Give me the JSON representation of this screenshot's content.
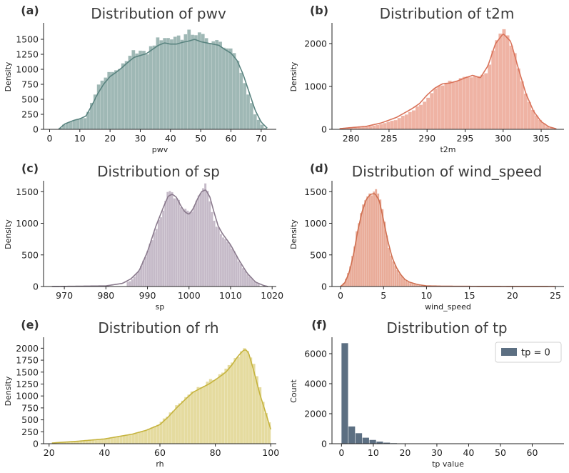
{
  "figure": {
    "background": "#ffffff"
  },
  "chart_data": [
    {
      "id": "a",
      "panel_label": "(a)",
      "type": "bar",
      "subtype": "histogram+kde",
      "title": "Distribution of pwv",
      "xlabel": "pwv",
      "ylabel": "Density",
      "xlim": [
        -2,
        75
      ],
      "ylim": [
        0,
        1750
      ],
      "xticks": [
        0,
        10,
        20,
        30,
        40,
        50,
        60,
        70
      ],
      "yticks": [
        0,
        250,
        500,
        750,
        1000,
        1250,
        1500
      ],
      "color": "#5a8480",
      "fill": "#9fb8b5",
      "bins_range": [
        3,
        72
      ],
      "bin_count": 60,
      "hist_points": [
        [
          3,
          0
        ],
        [
          5,
          90
        ],
        [
          8,
          150
        ],
        [
          10,
          175
        ],
        [
          12,
          190
        ],
        [
          14,
          450
        ],
        [
          16,
          730
        ],
        [
          18,
          840
        ],
        [
          20,
          950
        ],
        [
          22,
          990
        ],
        [
          24,
          1050
        ],
        [
          26,
          1150
        ],
        [
          28,
          1310
        ],
        [
          30,
          1300
        ],
        [
          32,
          1250
        ],
        [
          34,
          1400
        ],
        [
          36,
          1500
        ],
        [
          38,
          1540
        ],
        [
          40,
          1500
        ],
        [
          42,
          1570
        ],
        [
          44,
          1530
        ],
        [
          46,
          1610
        ],
        [
          48,
          1600
        ],
        [
          50,
          1580
        ],
        [
          52,
          1500
        ],
        [
          54,
          1470
        ],
        [
          56,
          1450
        ],
        [
          58,
          1390
        ],
        [
          60,
          1300
        ],
        [
          62,
          1180
        ],
        [
          64,
          850
        ],
        [
          66,
          550
        ],
        [
          68,
          250
        ],
        [
          70,
          90
        ],
        [
          72,
          0
        ]
      ],
      "kde_points": [
        [
          3,
          0
        ],
        [
          5,
          90
        ],
        [
          8,
          150
        ],
        [
          10,
          175
        ],
        [
          12,
          220
        ],
        [
          14,
          400
        ],
        [
          16,
          600
        ],
        [
          18,
          760
        ],
        [
          20,
          880
        ],
        [
          22,
          950
        ],
        [
          24,
          1030
        ],
        [
          26,
          1120
        ],
        [
          28,
          1200
        ],
        [
          30,
          1230
        ],
        [
          32,
          1260
        ],
        [
          34,
          1330
        ],
        [
          36,
          1400
        ],
        [
          38,
          1440
        ],
        [
          40,
          1420
        ],
        [
          42,
          1420
        ],
        [
          44,
          1450
        ],
        [
          46,
          1470
        ],
        [
          48,
          1500
        ],
        [
          50,
          1460
        ],
        [
          52,
          1440
        ],
        [
          54,
          1420
        ],
        [
          56,
          1400
        ],
        [
          58,
          1330
        ],
        [
          60,
          1270
        ],
        [
          62,
          1150
        ],
        [
          64,
          920
        ],
        [
          66,
          620
        ],
        [
          68,
          320
        ],
        [
          70,
          120
        ],
        [
          72,
          20
        ]
      ]
    },
    {
      "id": "b",
      "panel_label": "(b)",
      "type": "bar",
      "subtype": "histogram+kde",
      "title": "Distribution of t2m",
      "xlabel": "t2m",
      "ylabel": "Density",
      "xlim": [
        277.5,
        308
      ],
      "ylim": [
        0,
        2450
      ],
      "xticks": [
        280,
        285,
        290,
        295,
        300,
        305
      ],
      "yticks": [
        0,
        1000,
        2000
      ],
      "color": "#d9735a",
      "fill": "#efb3a4",
      "bins_range": [
        278.5,
        307
      ],
      "bin_count": 60,
      "hist_points": [
        [
          279,
          20
        ],
        [
          282,
          60
        ],
        [
          284,
          120
        ],
        [
          286,
          230
        ],
        [
          288,
          420
        ],
        [
          290,
          700
        ],
        [
          291,
          950
        ],
        [
          292,
          1050
        ],
        [
          293,
          1100
        ],
        [
          294,
          1150
        ],
        [
          295,
          1200
        ],
        [
          296,
          1260
        ],
        [
          297,
          1200
        ],
        [
          298,
          1400
        ],
        [
          299,
          1950
        ],
        [
          300,
          2400
        ],
        [
          301,
          2050
        ],
        [
          302,
          1450
        ],
        [
          303,
          800
        ],
        [
          304,
          420
        ],
        [
          305,
          180
        ],
        [
          306,
          50
        ],
        [
          307,
          0
        ]
      ],
      "kde_points": [
        [
          278.5,
          15
        ],
        [
          280,
          40
        ],
        [
          282,
          70
        ],
        [
          284,
          150
        ],
        [
          286,
          280
        ],
        [
          288,
          480
        ],
        [
          289,
          600
        ],
        [
          290,
          800
        ],
        [
          291,
          960
        ],
        [
          292,
          1060
        ],
        [
          293,
          1080
        ],
        [
          294,
          1130
        ],
        [
          295,
          1200
        ],
        [
          296,
          1260
        ],
        [
          297,
          1200
        ],
        [
          298,
          1480
        ],
        [
          299,
          2000
        ],
        [
          300,
          2230
        ],
        [
          301,
          2050
        ],
        [
          302,
          1420
        ],
        [
          303,
          830
        ],
        [
          304,
          420
        ],
        [
          305,
          180
        ],
        [
          306,
          60
        ],
        [
          307,
          10
        ]
      ]
    },
    {
      "id": "c",
      "panel_label": "(c)",
      "type": "bar",
      "subtype": "histogram+kde",
      "title": "Distribution of sp",
      "xlabel": "sp",
      "ylabel": "Density",
      "xlim": [
        965,
        1021
      ],
      "ylim": [
        0,
        1650
      ],
      "xticks": [
        970,
        980,
        990,
        1000,
        1010,
        1020
      ],
      "yticks": [
        0,
        500,
        1000,
        1500
      ],
      "color": "#8a7a8d",
      "fill": "#c5bac8",
      "bins_range": [
        985,
        1017
      ],
      "bin_count": 60,
      "hist_points": [
        [
          967,
          0
        ],
        [
          980,
          15
        ],
        [
          984,
          40
        ],
        [
          986,
          90
        ],
        [
          988,
          250
        ],
        [
          990,
          550
        ],
        [
          992,
          900
        ],
        [
          994,
          1250
        ],
        [
          995,
          1550
        ],
        [
          996,
          1480
        ],
        [
          998,
          1280
        ],
        [
          1000,
          1150
        ],
        [
          1002,
          1350
        ],
        [
          1003,
          1550
        ],
        [
          1004,
          1580
        ],
        [
          1005,
          1350
        ],
        [
          1006,
          1050
        ],
        [
          1008,
          800
        ],
        [
          1010,
          650
        ],
        [
          1012,
          400
        ],
        [
          1014,
          200
        ],
        [
          1016,
          60
        ],
        [
          1018,
          10
        ],
        [
          1019,
          0
        ]
      ],
      "kde_points": [
        [
          967,
          0
        ],
        [
          980,
          10
        ],
        [
          984,
          50
        ],
        [
          986,
          120
        ],
        [
          988,
          250
        ],
        [
          990,
          550
        ],
        [
          992,
          950
        ],
        [
          994,
          1280
        ],
        [
          995,
          1430
        ],
        [
          996,
          1460
        ],
        [
          997,
          1410
        ],
        [
          998,
          1280
        ],
        [
          999,
          1180
        ],
        [
          1000,
          1140
        ],
        [
          1001,
          1230
        ],
        [
          1002,
          1380
        ],
        [
          1003,
          1500
        ],
        [
          1004,
          1530
        ],
        [
          1005,
          1420
        ],
        [
          1006,
          1180
        ],
        [
          1007,
          960
        ],
        [
          1008,
          840
        ],
        [
          1010,
          660
        ],
        [
          1012,
          420
        ],
        [
          1014,
          210
        ],
        [
          1016,
          70
        ],
        [
          1018,
          15
        ],
        [
          1019,
          0
        ]
      ]
    },
    {
      "id": "d",
      "panel_label": "(d)",
      "type": "bar",
      "subtype": "histogram+kde",
      "title": "Distribution of wind_speed",
      "xlabel": "wind_speed",
      "ylabel": "Density",
      "xlim": [
        -1,
        26
      ],
      "ylim": [
        0,
        1650
      ],
      "xticks": [
        0,
        5,
        10,
        15,
        20,
        25
      ],
      "yticks": [
        0,
        500,
        1000,
        1500
      ],
      "color": "#cf6f50",
      "fill": "#e9ab98",
      "bins_range": [
        0,
        10
      ],
      "bin_count": 40,
      "hist_points": [
        [
          0,
          0
        ],
        [
          0.5,
          80
        ],
        [
          1,
          250
        ],
        [
          1.5,
          550
        ],
        [
          2,
          950
        ],
        [
          2.5,
          1250
        ],
        [
          3,
          1420
        ],
        [
          3.5,
          1480
        ],
        [
          4,
          1490
        ],
        [
          4.5,
          1500
        ],
        [
          5,
          1100
        ],
        [
          5.5,
          700
        ],
        [
          6,
          420
        ],
        [
          6.5,
          300
        ],
        [
          7,
          180
        ],
        [
          7.5,
          100
        ],
        [
          8,
          60
        ],
        [
          9,
          20
        ],
        [
          10,
          0
        ]
      ],
      "kde_points": [
        [
          0,
          0
        ],
        [
          0.5,
          60
        ],
        [
          1,
          220
        ],
        [
          1.5,
          500
        ],
        [
          2,
          880
        ],
        [
          2.5,
          1180
        ],
        [
          3,
          1380
        ],
        [
          3.5,
          1460
        ],
        [
          4,
          1470
        ],
        [
          4.5,
          1360
        ],
        [
          5,
          1050
        ],
        [
          5.5,
          720
        ],
        [
          6,
          460
        ],
        [
          6.5,
          300
        ],
        [
          7,
          190
        ],
        [
          7.5,
          110
        ],
        [
          8,
          70
        ],
        [
          9,
          30
        ],
        [
          10,
          10
        ],
        [
          12,
          5
        ],
        [
          15,
          3
        ],
        [
          20,
          1
        ],
        [
          25,
          0
        ]
      ]
    },
    {
      "id": "e",
      "panel_label": "(e)",
      "type": "bar",
      "subtype": "histogram+kde",
      "title": "Distribution of rh",
      "xlabel": "rh",
      "ylabel": "Density",
      "xlim": [
        18,
        102
      ],
      "ylim": [
        0,
        2200
      ],
      "xticks": [
        20,
        40,
        60,
        80,
        100
      ],
      "yticks": [
        0,
        250,
        500,
        750,
        1000,
        1250,
        1500,
        1750,
        2000
      ],
      "color": "#c6b43f",
      "fill": "#e5db9f",
      "bins_range": [
        22,
        100
      ],
      "bin_count": 70,
      "hist_points": [
        [
          22,
          20
        ],
        [
          30,
          50
        ],
        [
          40,
          100
        ],
        [
          50,
          200
        ],
        [
          55,
          280
        ],
        [
          60,
          420
        ],
        [
          63,
          600
        ],
        [
          66,
          780
        ],
        [
          69,
          950
        ],
        [
          72,
          1120
        ],
        [
          75,
          1200
        ],
        [
          78,
          1300
        ],
        [
          80,
          1380
        ],
        [
          82,
          1470
        ],
        [
          84,
          1560
        ],
        [
          86,
          1680
        ],
        [
          88,
          1850
        ],
        [
          90,
          1980
        ],
        [
          91,
          2000
        ],
        [
          92,
          1980
        ],
        [
          94,
          1600
        ],
        [
          96,
          1200
        ],
        [
          97,
          900
        ],
        [
          98,
          700
        ],
        [
          99,
          550
        ],
        [
          100,
          300
        ]
      ],
      "kde_points": [
        [
          21,
          15
        ],
        [
          30,
          50
        ],
        [
          40,
          100
        ],
        [
          50,
          200
        ],
        [
          55,
          280
        ],
        [
          60,
          400
        ],
        [
          63,
          560
        ],
        [
          66,
          750
        ],
        [
          69,
          920
        ],
        [
          72,
          1080
        ],
        [
          75,
          1170
        ],
        [
          78,
          1260
        ],
        [
          80,
          1340
        ],
        [
          82,
          1420
        ],
        [
          84,
          1510
        ],
        [
          86,
          1650
        ],
        [
          88,
          1820
        ],
        [
          90,
          1950
        ],
        [
          91,
          1970
        ],
        [
          92,
          1900
        ],
        [
          94,
          1500
        ],
        [
          96,
          1050
        ],
        [
          98,
          680
        ],
        [
          100,
          300
        ]
      ]
    },
    {
      "id": "f",
      "panel_label": "(f)",
      "type": "bar",
      "subtype": "histogram",
      "title": "Distribution of tp",
      "xlabel": "tp value",
      "ylabel": "Count",
      "xlim": [
        -3,
        70
      ],
      "ylim": [
        0,
        7000
      ],
      "xticks": [
        0,
        10,
        20,
        30,
        40,
        50,
        60
      ],
      "yticks": [
        0,
        2000,
        4000,
        6000
      ],
      "color": "#5c6f82",
      "fill": "#5c6f82",
      "legend": [
        "tp = 0"
      ],
      "legend_position": "top-right",
      "bin_width": 2.2,
      "bins": [
        [
          0,
          6700
        ],
        [
          2.2,
          1150
        ],
        [
          4.4,
          700
        ],
        [
          6.6,
          400
        ],
        [
          8.8,
          250
        ],
        [
          11,
          140
        ],
        [
          13.2,
          70
        ],
        [
          15.4,
          35
        ],
        [
          17.6,
          20
        ],
        [
          19.8,
          12
        ],
        [
          22,
          8
        ],
        [
          24.2,
          5
        ],
        [
          26.4,
          4
        ],
        [
          28.6,
          3
        ],
        [
          30.8,
          2
        ],
        [
          33,
          2
        ],
        [
          35.2,
          1
        ],
        [
          37.4,
          1
        ],
        [
          40,
          1
        ],
        [
          44,
          1
        ],
        [
          48,
          1
        ],
        [
          52,
          1
        ],
        [
          56,
          1
        ],
        [
          60,
          1
        ],
        [
          64,
          1
        ]
      ]
    }
  ]
}
